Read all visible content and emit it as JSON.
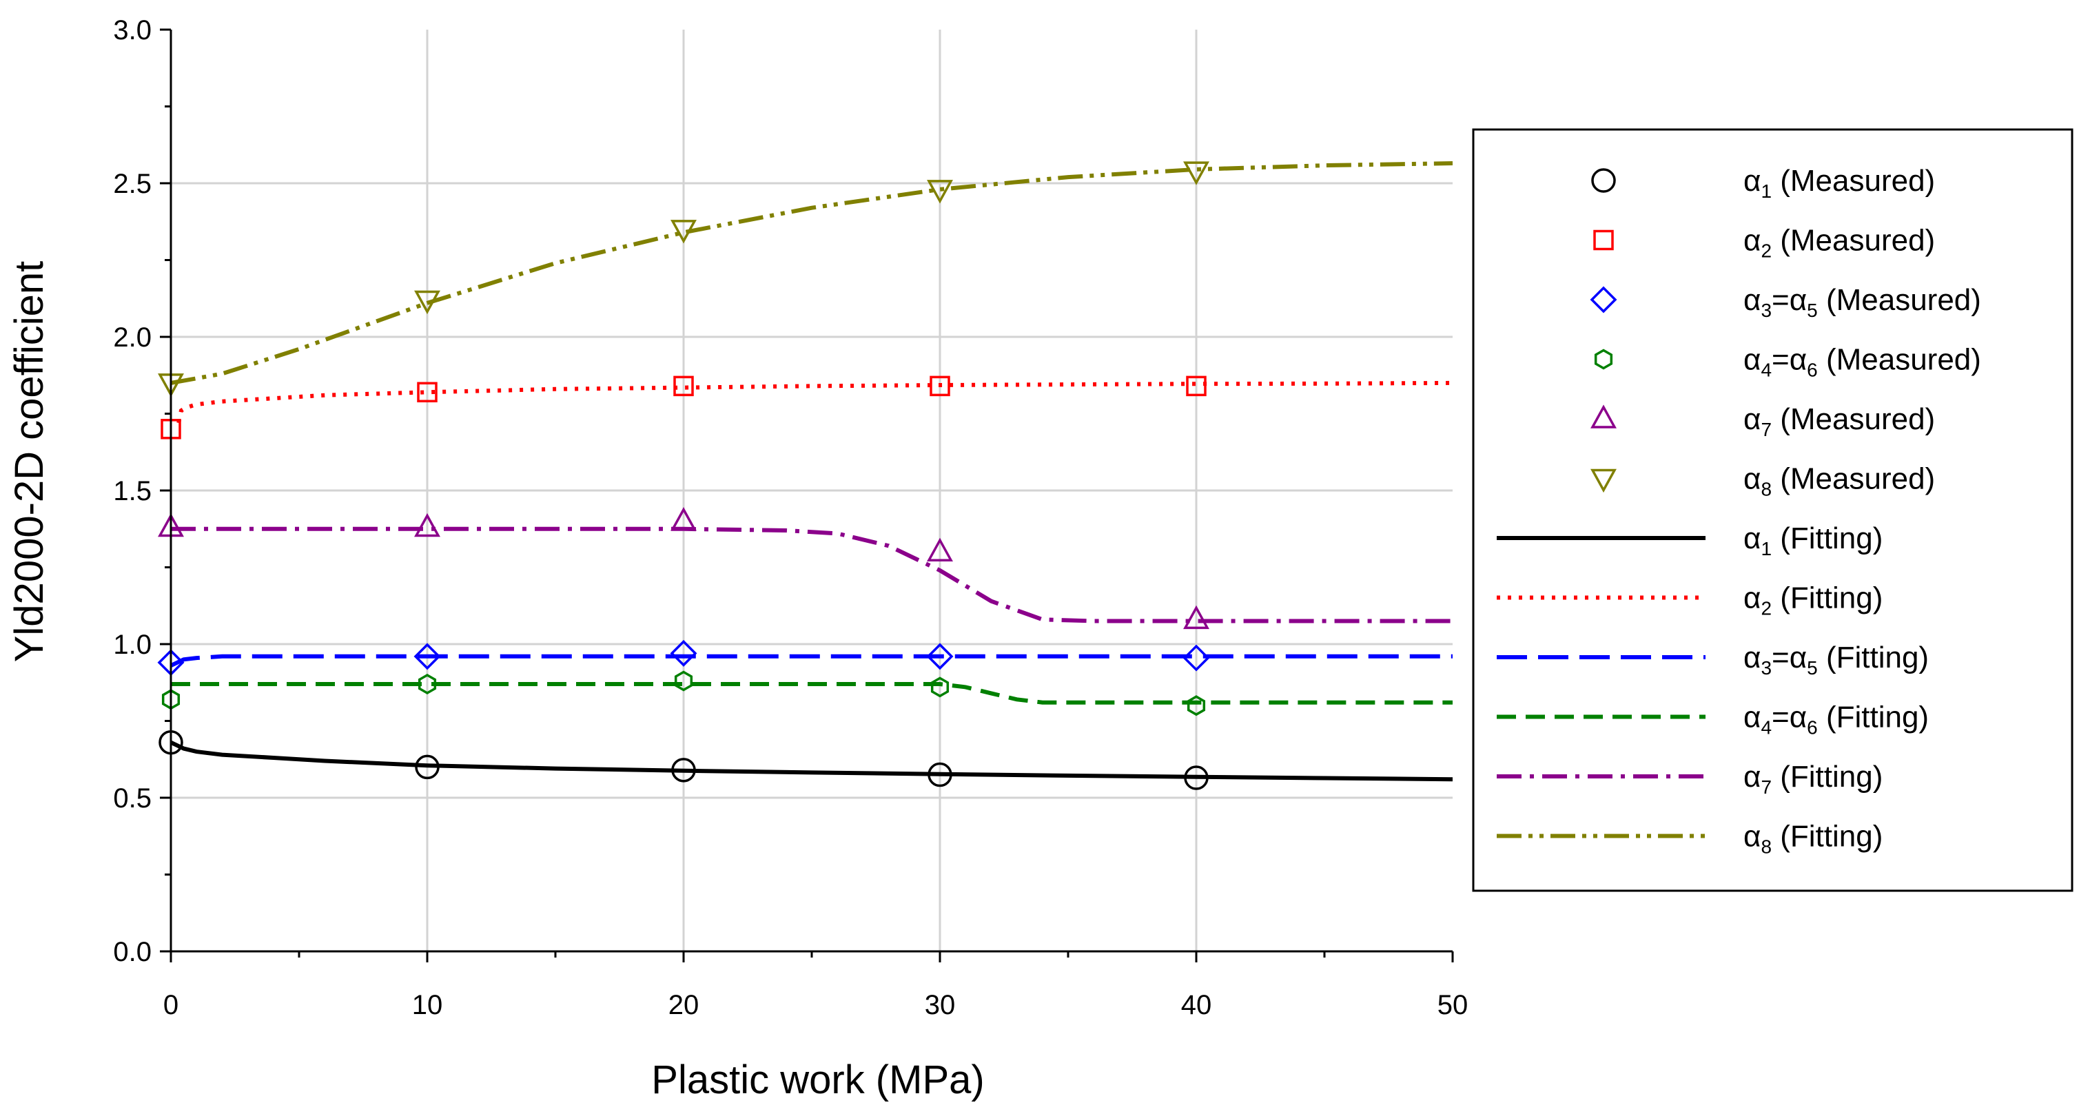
{
  "chart_data": {
    "type": "line",
    "xlabel": "Plastic work (MPa)",
    "ylabel": "Yld2000-2D coefficient",
    "xlim": [
      0,
      50
    ],
    "ylim": [
      0.0,
      3.0
    ],
    "x_ticks": [
      0,
      10,
      20,
      30,
      40,
      50
    ],
    "x_tick_labels": [
      "0",
      "10",
      "20",
      "30",
      "40",
      "50"
    ],
    "y_ticks": [
      0.0,
      0.5,
      1.0,
      1.5,
      2.0,
      2.5,
      3.0
    ],
    "y_tick_labels": [
      "0.0",
      "0.5",
      "1.0",
      "1.5",
      "2.0",
      "2.5",
      "3.0"
    ],
    "grid": true,
    "legend_position": "right",
    "measured": [
      {
        "id": "m1",
        "greek": "α",
        "sub": "1",
        "extra": "",
        "extra_sub": "",
        "label": " (Measured)",
        "marker": "circle",
        "color": "#000000",
        "x": [
          0,
          10,
          20,
          30,
          40
        ],
        "y": [
          0.68,
          0.6,
          0.59,
          0.575,
          0.565
        ]
      },
      {
        "id": "m2",
        "greek": "α",
        "sub": "2",
        "extra": "",
        "extra_sub": "",
        "label": " (Measured)",
        "marker": "square",
        "color": "#ff0000",
        "x": [
          0,
          10,
          20,
          30,
          40
        ],
        "y": [
          1.7,
          1.82,
          1.84,
          1.84,
          1.84
        ]
      },
      {
        "id": "m3",
        "greek": "α",
        "sub": "3",
        "extra": "=α",
        "extra_sub": "5",
        "label": " (Measured)",
        "marker": "diamond",
        "color": "#0000ff",
        "x": [
          0,
          10,
          20,
          30,
          40
        ],
        "y": [
          0.94,
          0.96,
          0.97,
          0.96,
          0.955
        ]
      },
      {
        "id": "m4",
        "greek": "α",
        "sub": "4",
        "extra": "=α",
        "extra_sub": "6",
        "label": " (Measured)",
        "marker": "hexagon",
        "color": "#008000",
        "x": [
          0,
          10,
          20,
          30,
          40
        ],
        "y": [
          0.82,
          0.87,
          0.88,
          0.86,
          0.8
        ]
      },
      {
        "id": "m7",
        "greek": "α",
        "sub": "7",
        "extra": "",
        "extra_sub": "",
        "label": " (Measured)",
        "marker": "triangle-up",
        "color": "#8b008b",
        "x": [
          0,
          10,
          20,
          30,
          40
        ],
        "y": [
          1.38,
          1.38,
          1.4,
          1.3,
          1.08
        ]
      },
      {
        "id": "m8",
        "greek": "α",
        "sub": "8",
        "extra": "",
        "extra_sub": "",
        "label": " (Measured)",
        "marker": "triangle-down",
        "color": "#808000",
        "x": [
          0,
          10,
          20,
          30,
          40
        ],
        "y": [
          1.85,
          2.12,
          2.35,
          2.48,
          2.54
        ]
      }
    ],
    "fitting": [
      {
        "id": "f1",
        "greek": "α",
        "sub": "1",
        "extra": "",
        "extra_sub": "",
        "label": " (Fitting)",
        "dash": "",
        "color": "#000000",
        "x": [
          0,
          0.5,
          1,
          2,
          4,
          6,
          10,
          15,
          20,
          25,
          30,
          35,
          40,
          45,
          50
        ],
        "y": [
          0.68,
          0.66,
          0.65,
          0.64,
          0.63,
          0.62,
          0.605,
          0.595,
          0.588,
          0.582,
          0.577,
          0.572,
          0.568,
          0.564,
          0.56
        ]
      },
      {
        "id": "f2",
        "greek": "α",
        "sub": "2",
        "extra": "",
        "extra_sub": "",
        "label": " (Fitting)",
        "dash": "5,11",
        "color": "#ff0000",
        "x": [
          0.3,
          0.4,
          0.6,
          1,
          2,
          4,
          6,
          10,
          15,
          20,
          25,
          30,
          35,
          40,
          45,
          50
        ],
        "y": [
          1.72,
          1.76,
          1.77,
          1.78,
          1.79,
          1.8,
          1.81,
          1.82,
          1.83,
          1.835,
          1.84,
          1.843,
          1.845,
          1.847,
          1.848,
          1.85
        ]
      },
      {
        "id": "f3",
        "greek": "α",
        "sub": "3",
        "extra": "=α",
        "extra_sub": "5",
        "label": " (Fitting)",
        "dash": "44,16",
        "color": "#0000ff",
        "x": [
          0,
          0.5,
          1,
          2,
          5,
          10,
          20,
          30,
          40,
          50
        ],
        "y": [
          0.93,
          0.95,
          0.955,
          0.96,
          0.96,
          0.96,
          0.96,
          0.96,
          0.96,
          0.96
        ]
      },
      {
        "id": "f4",
        "greek": "α",
        "sub": "4",
        "extra": "=α",
        "extra_sub": "6",
        "label": " (Fitting)",
        "dash": "28,14",
        "color": "#008000",
        "x": [
          0,
          10,
          20,
          30,
          31,
          32,
          33,
          34,
          40,
          50
        ],
        "y": [
          0.87,
          0.87,
          0.87,
          0.87,
          0.86,
          0.84,
          0.82,
          0.81,
          0.81,
          0.81
        ]
      },
      {
        "id": "f7",
        "greek": "α",
        "sub": "7",
        "extra": "",
        "extra_sub": "",
        "label": " (Fitting)",
        "dash": "36,12,6,12",
        "color": "#8b008b",
        "x": [
          0,
          10,
          20,
          24,
          26,
          28,
          30,
          32,
          34,
          36,
          40,
          50
        ],
        "y": [
          1.375,
          1.375,
          1.375,
          1.37,
          1.36,
          1.32,
          1.24,
          1.14,
          1.08,
          1.075,
          1.075,
          1.075
        ]
      },
      {
        "id": "f8",
        "greek": "α",
        "sub": "8",
        "extra": "",
        "extra_sub": "",
        "label": " (Fitting)",
        "dash": "36,10,6,10,6,10",
        "color": "#808000",
        "x": [
          0,
          2,
          5,
          10,
          15,
          20,
          25,
          30,
          35,
          40,
          45,
          50
        ],
        "y": [
          1.85,
          1.88,
          1.96,
          2.11,
          2.24,
          2.34,
          2.42,
          2.48,
          2.52,
          2.545,
          2.558,
          2.565
        ]
      }
    ]
  }
}
